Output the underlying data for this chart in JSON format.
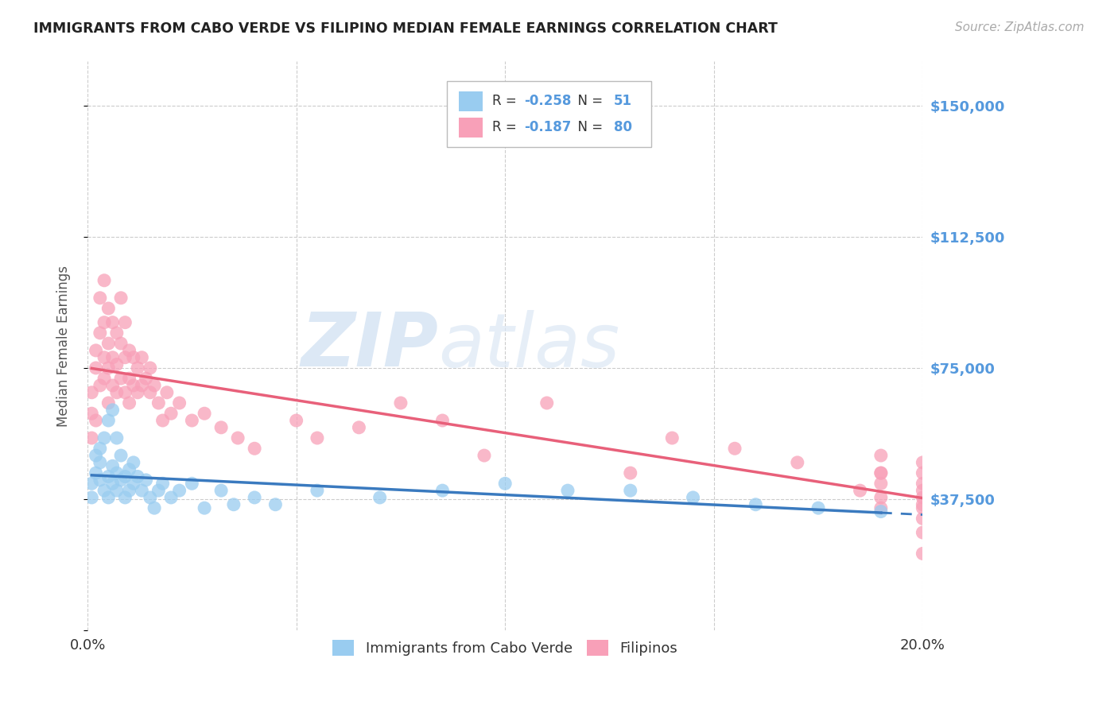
{
  "title": "IMMIGRANTS FROM CABO VERDE VS FILIPINO MEDIAN FEMALE EARNINGS CORRELATION CHART",
  "source": "Source: ZipAtlas.com",
  "ylabel": "Median Female Earnings",
  "xmin": 0.0,
  "xmax": 0.2,
  "ymin": 0,
  "ymax": 162500,
  "yticks": [
    0,
    37500,
    75000,
    112500,
    150000
  ],
  "ytick_labels": [
    "",
    "$37,500",
    "$75,000",
    "$112,500",
    "$150,000"
  ],
  "xticks": [
    0.0,
    0.05,
    0.1,
    0.15,
    0.2
  ],
  "xtick_labels": [
    "0.0%",
    "",
    "",
    "",
    "20.0%"
  ],
  "blue_R": -0.258,
  "blue_N": 51,
  "pink_R": -0.187,
  "pink_N": 80,
  "blue_scatter_color": "#99ccf0",
  "pink_scatter_color": "#f8a0b8",
  "trend_blue": "#3a7abf",
  "trend_pink": "#e8607a",
  "grid_color": "#cccccc",
  "label_color": "#5599dd",
  "cabo_verde_x": [
    0.001,
    0.001,
    0.002,
    0.002,
    0.003,
    0.003,
    0.003,
    0.004,
    0.004,
    0.005,
    0.005,
    0.005,
    0.006,
    0.006,
    0.006,
    0.007,
    0.007,
    0.007,
    0.008,
    0.008,
    0.009,
    0.009,
    0.01,
    0.01,
    0.011,
    0.011,
    0.012,
    0.013,
    0.014,
    0.015,
    0.016,
    0.017,
    0.018,
    0.02,
    0.022,
    0.025,
    0.028,
    0.032,
    0.035,
    0.04,
    0.045,
    0.055,
    0.07,
    0.085,
    0.1,
    0.115,
    0.13,
    0.145,
    0.16,
    0.175,
    0.19
  ],
  "cabo_verde_y": [
    42000,
    38000,
    45000,
    50000,
    43000,
    48000,
    52000,
    40000,
    55000,
    38000,
    44000,
    60000,
    42000,
    47000,
    63000,
    40000,
    45000,
    55000,
    43000,
    50000,
    38000,
    44000,
    40000,
    46000,
    42000,
    48000,
    44000,
    40000,
    43000,
    38000,
    35000,
    40000,
    42000,
    38000,
    40000,
    42000,
    35000,
    40000,
    36000,
    38000,
    36000,
    40000,
    38000,
    40000,
    42000,
    40000,
    40000,
    38000,
    36000,
    35000,
    34000
  ],
  "filipino_x": [
    0.001,
    0.001,
    0.001,
    0.002,
    0.002,
    0.002,
    0.003,
    0.003,
    0.003,
    0.004,
    0.004,
    0.004,
    0.004,
    0.005,
    0.005,
    0.005,
    0.005,
    0.006,
    0.006,
    0.006,
    0.007,
    0.007,
    0.007,
    0.008,
    0.008,
    0.008,
    0.009,
    0.009,
    0.009,
    0.01,
    0.01,
    0.01,
    0.011,
    0.011,
    0.012,
    0.012,
    0.013,
    0.013,
    0.014,
    0.015,
    0.015,
    0.016,
    0.017,
    0.018,
    0.019,
    0.02,
    0.022,
    0.025,
    0.028,
    0.032,
    0.036,
    0.04,
    0.05,
    0.055,
    0.065,
    0.075,
    0.085,
    0.095,
    0.11,
    0.13,
    0.14,
    0.155,
    0.17,
    0.185,
    0.19,
    0.19,
    0.19,
    0.19,
    0.19,
    0.19,
    0.2,
    0.2,
    0.2,
    0.2,
    0.2,
    0.2,
    0.2,
    0.2,
    0.2,
    0.2
  ],
  "filipino_y": [
    55000,
    62000,
    68000,
    60000,
    75000,
    80000,
    70000,
    85000,
    95000,
    72000,
    78000,
    88000,
    100000,
    65000,
    75000,
    82000,
    92000,
    70000,
    78000,
    88000,
    68000,
    76000,
    85000,
    72000,
    82000,
    95000,
    68000,
    78000,
    88000,
    65000,
    72000,
    80000,
    70000,
    78000,
    68000,
    75000,
    70000,
    78000,
    72000,
    68000,
    75000,
    70000,
    65000,
    60000,
    68000,
    62000,
    65000,
    60000,
    62000,
    58000,
    55000,
    52000,
    60000,
    55000,
    58000,
    65000,
    60000,
    50000,
    65000,
    45000,
    55000,
    52000,
    48000,
    40000,
    50000,
    45000,
    38000,
    42000,
    45000,
    35000,
    48000,
    42000,
    38000,
    45000,
    40000,
    35000,
    28000,
    32000,
    36000,
    22000
  ]
}
